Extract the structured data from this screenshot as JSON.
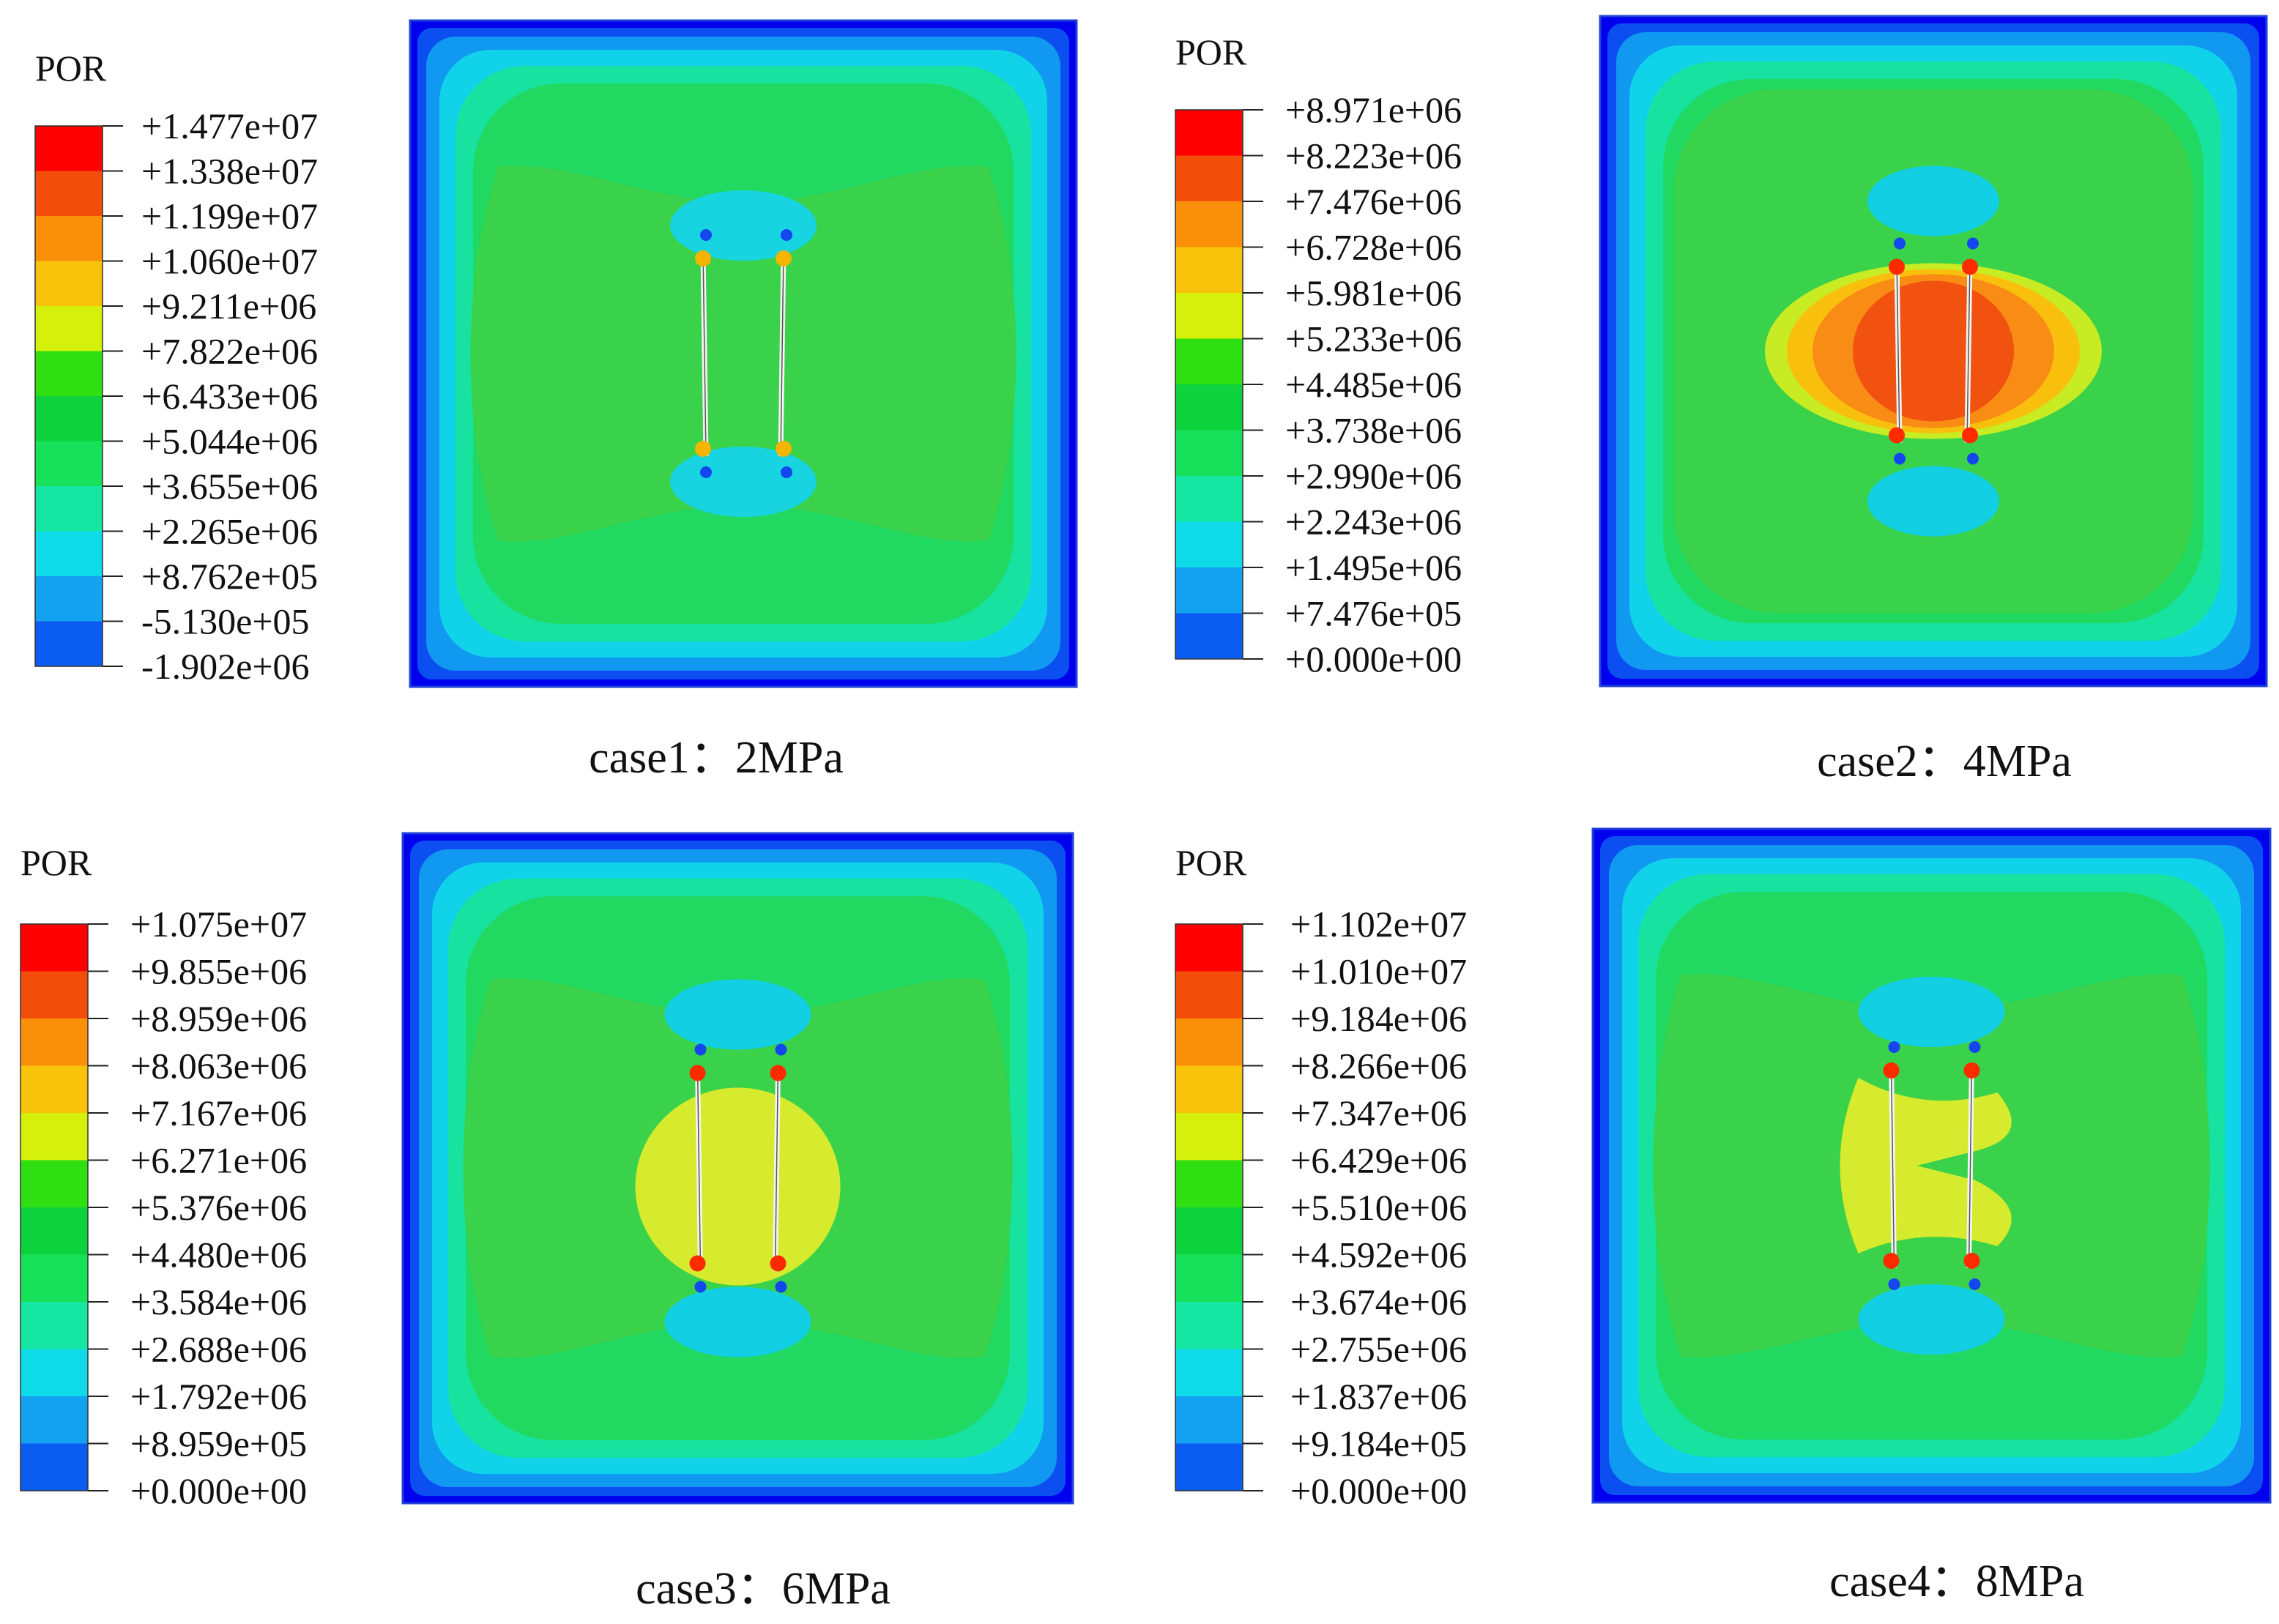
{
  "figure": {
    "background": "#ffffff"
  },
  "contour_palette": [
    "#0000ff",
    "#0b5df2",
    "#13a1f0",
    "#0fdbe8",
    "#15e6a2",
    "#17e05a",
    "#0dd13d",
    "#2fdf12",
    "#d5f00b",
    "#f8c30a",
    "#fa8f09",
    "#f24d0b",
    "#ff0000"
  ],
  "chart_data": [
    {
      "type": "heatmap",
      "field_variable": "POR",
      "legend_title": "POR",
      "caption": "case1：2MPa",
      "pressure": "2MPa",
      "tick_labels": [
        "+1.477e+07",
        "+1.338e+07",
        "+1.199e+07",
        "+1.060e+07",
        "+9.211e+06",
        "+7.822e+06",
        "+6.433e+06",
        "+5.044e+06",
        "+3.655e+06",
        "+2.265e+06",
        "+8.762e+05",
        "-5.130e+05",
        "-1.902e+06"
      ],
      "tick_values": [
        14770000,
        13380000,
        11990000,
        10600000,
        9211000,
        7822000,
        6433000,
        5044000,
        3655000,
        2265000,
        876200,
        -513000,
        -1902000
      ],
      "range": [
        -1902000,
        14770000
      ],
      "pattern": "concave-sides",
      "fracture_tips": [
        "#f5b400",
        "#f5b400",
        "#f5b400",
        "#f5b400"
      ]
    },
    {
      "type": "heatmap",
      "field_variable": "POR",
      "legend_title": "POR",
      "caption": "case2：4MPa",
      "pressure": "4MPa",
      "tick_labels": [
        "+8.971e+06",
        "+8.223e+06",
        "+7.476e+06",
        "+6.728e+06",
        "+5.981e+06",
        "+5.233e+06",
        "+4.485e+06",
        "+3.738e+06",
        "+2.990e+06",
        "+2.243e+06",
        "+1.495e+06",
        "+7.476e+05",
        "+0.000e+00"
      ],
      "tick_values": [
        8971000,
        8223000,
        7476000,
        6728000,
        5981000,
        5233000,
        4485000,
        3738000,
        2990000,
        2243000,
        1495000,
        747600,
        0
      ],
      "range": [
        0,
        8971000
      ],
      "pattern": "uniform",
      "fracture_tips": [
        "#ff2a00",
        "#ff2a00",
        "#ff2a00",
        "#ff2a00"
      ]
    },
    {
      "type": "heatmap",
      "field_variable": "POR",
      "legend_title": "POR",
      "caption": "case3：6MPa",
      "pressure": "6MPa",
      "tick_labels": [
        "+1.075e+07",
        "+9.855e+06",
        "+8.959e+06",
        "+8.063e+06",
        "+7.167e+06",
        "+6.271e+06",
        "+5.376e+06",
        "+4.480e+06",
        "+3.584e+06",
        "+2.688e+06",
        "+1.792e+06",
        "+8.959e+05",
        "+0.000e+00"
      ],
      "tick_values": [
        10750000,
        9855000,
        8959000,
        8063000,
        7167000,
        6271000,
        5376000,
        4480000,
        3584000,
        2688000,
        1792000,
        895900,
        0
      ],
      "range": [
        0,
        10750000
      ],
      "pattern": "concave-sides",
      "fracture_tips": [
        "#ff2a00",
        "#ff2a00",
        "#ff2a00",
        "#ff2a00"
      ]
    },
    {
      "type": "heatmap",
      "field_variable": "POR",
      "legend_title": "POR",
      "caption": "case4：8MPa",
      "pressure": "8MPa",
      "tick_labels": [
        "+1.102e+07",
        "+1.010e+07",
        "+9.184e+06",
        "+8.266e+06",
        "+7.347e+06",
        "+6.429e+06",
        "+5.510e+06",
        "+4.592e+06",
        "+3.674e+06",
        "+2.755e+06",
        "+1.837e+06",
        "+9.184e+05",
        "+0.000e+00"
      ],
      "tick_values": [
        11020000,
        10100000,
        9184000,
        8266000,
        7347000,
        6429000,
        5510000,
        4592000,
        3674000,
        2755000,
        1837000,
        918400,
        0
      ],
      "range": [
        0,
        11020000
      ],
      "pattern": "concave-sides",
      "fracture_tips": [
        "#ff2a00",
        "#ff2a00",
        "#ff2a00",
        "#ff2a00"
      ]
    }
  ]
}
